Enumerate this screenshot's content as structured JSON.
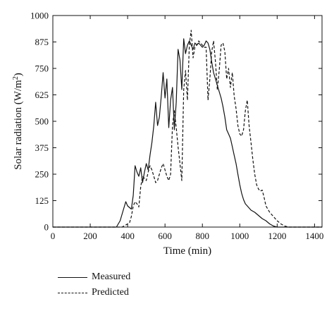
{
  "chart_data": {
    "type": "line",
    "xlabel": "Time (min)",
    "ylabel": "Solar radiation (W/m",
    "ylabel_sup": "2",
    "ylabel_close": ")",
    "xlim": [
      0,
      1440
    ],
    "ylim": [
      0,
      1000
    ],
    "xticks": [
      0,
      200,
      400,
      600,
      800,
      1000,
      1200,
      1400
    ],
    "yticks": [
      0,
      125,
      250,
      375,
      500,
      625,
      750,
      875,
      1000
    ],
    "legend_position": "bottom-left",
    "series": [
      {
        "name": "Measured",
        "style": "solid",
        "x": [
          0,
          340,
          360,
          380,
          390,
          400,
          420,
          430,
          440,
          450,
          460,
          470,
          480,
          490,
          500,
          510,
          520,
          530,
          540,
          550,
          560,
          570,
          580,
          590,
          600,
          610,
          620,
          630,
          640,
          650,
          660,
          670,
          680,
          690,
          700,
          710,
          720,
          730,
          740,
          750,
          760,
          770,
          780,
          790,
          800,
          810,
          820,
          830,
          840,
          850,
          860,
          870,
          880,
          890,
          900,
          910,
          920,
          930,
          940,
          950,
          960,
          970,
          980,
          990,
          1000,
          1010,
          1020,
          1030,
          1040,
          1060,
          1080,
          1100,
          1120,
          1140,
          1160,
          1180,
          1200,
          1220,
          1240,
          1440
        ],
        "y": [
          0,
          0,
          30,
          90,
          120,
          100,
          85,
          150,
          290,
          260,
          240,
          280,
          210,
          260,
          300,
          270,
          340,
          400,
          480,
          590,
          480,
          520,
          620,
          730,
          610,
          700,
          470,
          600,
          660,
          460,
          590,
          840,
          790,
          650,
          890,
          820,
          860,
          880,
          860,
          840,
          870,
          860,
          870,
          860,
          850,
          860,
          880,
          870,
          840,
          780,
          730,
          700,
          670,
          640,
          610,
          570,
          520,
          460,
          440,
          420,
          380,
          340,
          300,
          250,
          200,
          160,
          130,
          110,
          100,
          80,
          70,
          55,
          40,
          30,
          15,
          5,
          0,
          0,
          0,
          0
        ]
      },
      {
        "name": "Predicted",
        "style": "dashed",
        "x": [
          0,
          370,
          390,
          410,
          420,
          430,
          440,
          450,
          460,
          470,
          480,
          490,
          500,
          510,
          520,
          530,
          540,
          550,
          560,
          570,
          580,
          590,
          600,
          610,
          620,
          630,
          640,
          650,
          660,
          670,
          680,
          690,
          700,
          710,
          720,
          730,
          740,
          750,
          760,
          770,
          780,
          790,
          800,
          810,
          820,
          830,
          840,
          850,
          860,
          870,
          880,
          890,
          900,
          910,
          920,
          930,
          940,
          950,
          960,
          970,
          980,
          990,
          1000,
          1010,
          1020,
          1030,
          1040,
          1050,
          1060,
          1070,
          1080,
          1090,
          1100,
          1110,
          1120,
          1130,
          1140,
          1160,
          1180,
          1200,
          1220,
          1240,
          1260,
          1440
        ],
        "y": [
          0,
          0,
          10,
          20,
          50,
          100,
          120,
          110,
          95,
          190,
          240,
          230,
          220,
          260,
          290,
          270,
          240,
          210,
          220,
          250,
          280,
          300,
          270,
          240,
          220,
          250,
          480,
          550,
          470,
          380,
          300,
          220,
          650,
          740,
          600,
          860,
          930,
          800,
          850,
          860,
          880,
          870,
          860,
          850,
          850,
          600,
          700,
          830,
          880,
          780,
          650,
          740,
          860,
          870,
          830,
          700,
          750,
          660,
          730,
          620,
          560,
          480,
          440,
          430,
          460,
          550,
          600,
          480,
          400,
          320,
          250,
          200,
          180,
          170,
          175,
          140,
          100,
          70,
          50,
          30,
          15,
          5,
          0,
          0
        ]
      }
    ]
  },
  "legend": {
    "measured_label": "Measured",
    "predicted_label": "Predicted"
  }
}
